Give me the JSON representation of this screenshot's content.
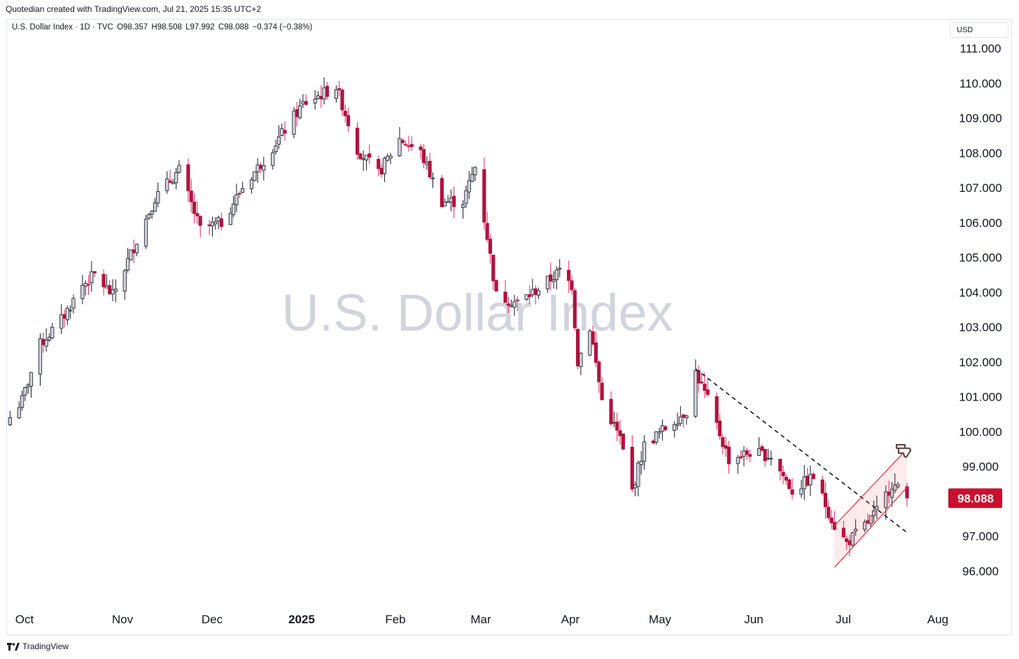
{
  "header": {
    "caption": "Quotedian created with TradingView.com, Jul 21, 2025 15:35 UTC+2"
  },
  "legend": {
    "symbol": "U.S. Dollar Index · 1D · TVC",
    "open": "O98.357",
    "high": "H98.508",
    "low": "L97.992",
    "close": "C98.088",
    "change": "−0.374 (−0.38%)"
  },
  "currency": "USD",
  "watermark": "U.S. Dollar Index",
  "footer": {
    "brand": "TradingView"
  },
  "colors": {
    "up_body": "#d1d4dc",
    "down_body": "#b2123e",
    "up_wick": "#131722",
    "down_wick": "#e0245e",
    "last_price": "#c8102e",
    "channel": "#f23645",
    "watermark": "#d1d4dc"
  },
  "chart_data": {
    "type": "candlestick",
    "title": "",
    "xlabel": "",
    "ylabel": "",
    "ylim": [
      95.5,
      111.5
    ],
    "grid": false,
    "y_ticks": [
      "111.000",
      "110.000",
      "109.000",
      "108.000",
      "107.000",
      "106.000",
      "105.000",
      "104.000",
      "103.000",
      "102.000",
      "101.000",
      "100.000",
      "99.000",
      "97.000",
      "96.000"
    ],
    "last_price": "98.088",
    "x_ticks": [
      "Oct",
      "Nov",
      "Dec",
      "2025",
      "Feb",
      "Mar",
      "Apr",
      "May",
      "Jun",
      "Jul",
      "Aug"
    ],
    "x_tick_bold": "2025",
    "close_path": [
      {
        "x": "2024-09-27",
        "close": 100.4
      },
      {
        "x": "2024-10-01",
        "close": 100.9
      },
      {
        "x": "2024-10-07",
        "close": 102.5
      },
      {
        "x": "2024-10-14",
        "close": 103.2
      },
      {
        "x": "2024-10-21",
        "close": 104.2
      },
      {
        "x": "2024-10-25",
        "close": 104.5
      },
      {
        "x": "2024-10-31",
        "close": 103.9
      },
      {
        "x": "2024-11-06",
        "close": 105.1
      },
      {
        "x": "2024-11-14",
        "close": 106.7
      },
      {
        "x": "2024-11-22",
        "close": 107.5
      },
      {
        "x": "2024-11-29",
        "close": 105.8
      },
      {
        "x": "2024-12-06",
        "close": 106.0
      },
      {
        "x": "2024-12-13",
        "close": 107.0
      },
      {
        "x": "2024-12-20",
        "close": 107.8
      },
      {
        "x": "2025-01-02",
        "close": 109.4
      },
      {
        "x": "2025-01-13",
        "close": 109.9
      },
      {
        "x": "2025-01-20",
        "close": 108.1
      },
      {
        "x": "2025-01-27",
        "close": 107.4
      },
      {
        "x": "2025-02-03",
        "close": 108.4
      },
      {
        "x": "2025-02-10",
        "close": 108.0
      },
      {
        "x": "2025-02-17",
        "close": 106.6
      },
      {
        "x": "2025-02-24",
        "close": 106.6
      },
      {
        "x": "2025-02-28",
        "close": 107.6
      },
      {
        "x": "2025-03-04",
        "close": 105.6
      },
      {
        "x": "2025-03-07",
        "close": 103.9
      },
      {
        "x": "2025-03-14",
        "close": 103.7
      },
      {
        "x": "2025-03-21",
        "close": 104.1
      },
      {
        "x": "2025-03-28",
        "close": 104.6
      },
      {
        "x": "2025-04-01",
        "close": 104.2
      },
      {
        "x": "2025-04-03",
        "close": 102.0
      },
      {
        "x": "2025-04-07",
        "close": 103.0
      },
      {
        "x": "2025-04-11",
        "close": 100.9
      },
      {
        "x": "2025-04-17",
        "close": 99.8
      },
      {
        "x": "2025-04-21",
        "close": 98.3
      },
      {
        "x": "2025-04-25",
        "close": 99.6
      },
      {
        "x": "2025-05-02",
        "close": 100.1
      },
      {
        "x": "2025-05-09",
        "close": 100.6
      },
      {
        "x": "2025-05-12",
        "close": 101.7
      },
      {
        "x": "2025-05-16",
        "close": 100.9
      },
      {
        "x": "2025-05-23",
        "close": 99.2
      },
      {
        "x": "2025-05-30",
        "close": 99.4
      },
      {
        "x": "2025-06-06",
        "close": 99.3
      },
      {
        "x": "2025-06-13",
        "close": 98.3
      },
      {
        "x": "2025-06-20",
        "close": 98.7
      },
      {
        "x": "2025-06-27",
        "close": 97.3
      },
      {
        "x": "2025-07-01",
        "close": 96.8
      },
      {
        "x": "2025-07-07",
        "close": 97.3
      },
      {
        "x": "2025-07-11",
        "close": 97.7
      },
      {
        "x": "2025-07-16",
        "close": 98.5
      },
      {
        "x": "2025-07-21",
        "close": 98.088
      }
    ],
    "annotations": [
      {
        "type": "trendline",
        "style": "dashed",
        "from": {
          "x": "2025-05-12",
          "y": 101.8
        },
        "to": {
          "x": "2025-07-21",
          "y": 97.1
        }
      },
      {
        "type": "parallel-channel",
        "style": "filled",
        "lower_from": {
          "x": "2025-06-27",
          "y": 96.1
        },
        "lower_to": {
          "x": "2025-07-21",
          "y": 98.4
        },
        "upper_from": {
          "x": "2025-06-27",
          "y": 97.3
        },
        "upper_to": {
          "x": "2025-07-21",
          "y": 99.5
        }
      },
      {
        "type": "icon",
        "name": "thumbs-down-icon",
        "at": {
          "x": "2025-07-21",
          "y": 99.3
        }
      }
    ]
  }
}
